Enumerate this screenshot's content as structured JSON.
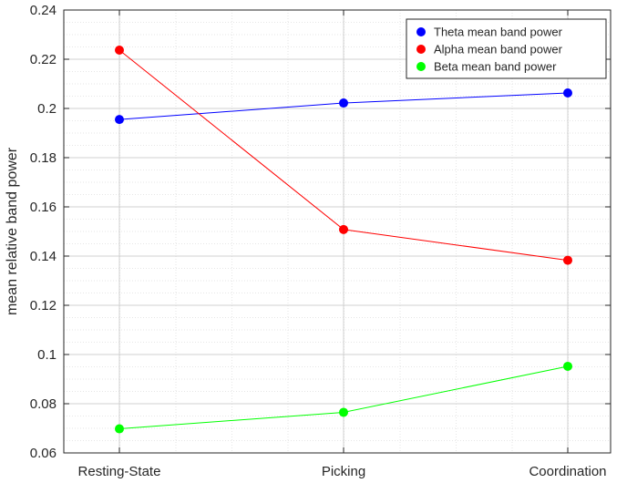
{
  "chart_data": {
    "type": "line",
    "title": "",
    "xlabel": "",
    "ylabel": "mean relative band power",
    "categories": [
      "Resting-State",
      "Picking",
      "Coordination"
    ],
    "ylim": [
      0.06,
      0.24
    ],
    "yticks": [
      0.06,
      0.08,
      0.1,
      0.12,
      0.14,
      0.16,
      0.18,
      0.2,
      0.22,
      0.24
    ],
    "ytick_labels": [
      "0.06",
      "0.08",
      "0.1",
      "0.12",
      "0.14",
      "0.16",
      "0.18",
      "0.2",
      "0.22",
      "0.24"
    ],
    "grid": "on (major and minor, dotted)",
    "legend_position": "top-right",
    "series": [
      {
        "name": "Theta mean band power",
        "color": "#0000ff",
        "values": [
          0.1955,
          0.2022,
          0.2063
        ]
      },
      {
        "name": "Alpha mean band power",
        "color": "#ff0000",
        "values": [
          0.2237,
          0.1508,
          0.1383
        ]
      },
      {
        "name": "Beta mean band power",
        "color": "#00ff00",
        "values": [
          0.0698,
          0.0765,
          0.0952
        ]
      }
    ]
  }
}
